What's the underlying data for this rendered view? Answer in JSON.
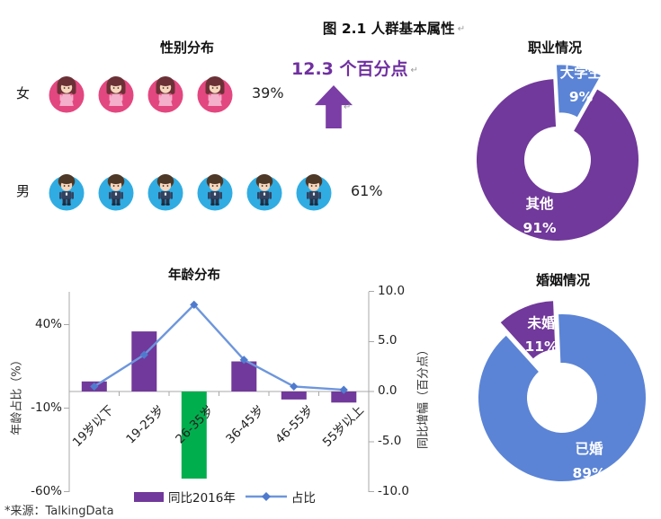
{
  "page": {
    "main_title": "图 2.1 人群基本属性",
    "paragraph_mark": "↵",
    "highlight_text": "12.3 个百分点",
    "source_note": "*来源：TalkingData"
  },
  "colors": {
    "purple": "#71399B",
    "deep_purple_text": "#7030A0",
    "arrow_purple": "#7B3DA6",
    "green": "#00AE4D",
    "line_blue": "#6D96DC",
    "marker_blue": "#4F7BCE",
    "donut_blue": "#5B84D6",
    "female_pink": "#E3477F",
    "male_blue": "#30ACE2",
    "axis_gray": "#A8A8A8"
  },
  "chart_data": [
    {
      "id": "gender",
      "type": "pictograph",
      "title": "性别分布",
      "rows": [
        {
          "label": "女",
          "value": 39,
          "pct": "39%",
          "icon": "girl-icon",
          "icon_count": 4,
          "circle_color": "#E3477F"
        },
        {
          "label": "男",
          "value": 61,
          "pct": "61%",
          "icon": "boy-icon",
          "icon_count": 6,
          "circle_color": "#30ACE2"
        }
      ]
    },
    {
      "id": "occupation",
      "type": "pie",
      "title": "职业情况",
      "donut": true,
      "start_angle": -3,
      "slices": [
        {
          "name": "大学生",
          "value": 9,
          "pct": "9%",
          "color": "#5B84D6",
          "exploded": true
        },
        {
          "name": "其他",
          "value": 91,
          "pct": "91%",
          "color": "#71399B",
          "exploded": false
        }
      ]
    },
    {
      "id": "marriage",
      "type": "pie",
      "title": "婚姻情况",
      "donut": true,
      "start_angle": -42,
      "slices": [
        {
          "name": "未婚",
          "value": 11,
          "pct": "11%",
          "color": "#71399B",
          "exploded": true
        },
        {
          "name": "已婚",
          "value": 89,
          "pct": "89%",
          "color": "#5B84D6",
          "exploded": false
        }
      ]
    },
    {
      "id": "age",
      "type": "bar+line",
      "title": "年龄分布",
      "categories": [
        "19岁以下",
        "19-25岁",
        "26-35岁",
        "36-45岁",
        "46-55岁",
        "55岁以上"
      ],
      "series": [
        {
          "name": "同比2016年",
          "type": "bar",
          "axis": "right",
          "values": [
            1.0,
            6.0,
            -8.7,
            3.0,
            -0.8,
            -1.1
          ],
          "bar_colors": [
            "#71399B",
            "#71399B",
            "#00AE4D",
            "#71399B",
            "#71399B",
            "#71399B"
          ],
          "legend_color": "#71399B"
        },
        {
          "name": "占比",
          "type": "line",
          "axis": "left",
          "values": [
            3,
            22,
            52,
            19,
            3,
            1
          ],
          "color": "#6D96DC",
          "marker_color": "#4F7BCE"
        }
      ],
      "left_axis": {
        "title": "年龄占比（%）",
        "min": -60,
        "max": 60,
        "ticks": [
          40,
          -10,
          -60
        ],
        "tick_labels": [
          "40%",
          "-10%",
          "-60%"
        ]
      },
      "right_axis": {
        "title": "同比增幅（百分点）",
        "min": -10,
        "max": 10,
        "ticks": [
          10,
          5,
          0,
          -5,
          -10
        ],
        "tick_labels": [
          "10.0",
          "5.0",
          "0.0",
          "-5.0",
          "-10.0"
        ]
      },
      "grid": false,
      "legend_position": "bottom"
    }
  ]
}
